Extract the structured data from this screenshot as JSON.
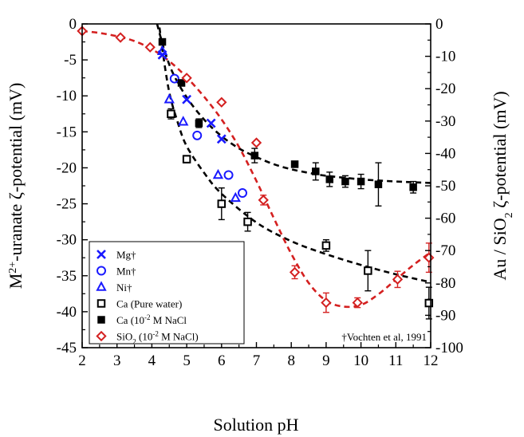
{
  "chart_data": {
    "type": "scatter",
    "xlabel": "Solution pH",
    "ylabel_left": {
      "main": "M",
      "sup": "2+",
      "rest": "-uranate ζ-potential (mV)"
    },
    "ylabel_right": {
      "main": "Au / SiO",
      "sub": "2",
      "rest": " ζ-potential (mV)"
    },
    "xlim": [
      2,
      12
    ],
    "ylim_left": [
      -45,
      0
    ],
    "ylim_right": [
      -100,
      0
    ],
    "xticks": [
      "2",
      "3",
      "4",
      "5",
      "6",
      "7",
      "8",
      "9",
      "10",
      "11",
      "12"
    ],
    "yticks_left": [
      "0",
      "-5",
      "-10",
      "-15",
      "-20",
      "-25",
      "-30",
      "-35",
      "-40",
      "-45"
    ],
    "yticks_right": [
      "0",
      "-10",
      "-20",
      "-30",
      "-40",
      "-50",
      "-60",
      "-70",
      "-80",
      "-90",
      "-100"
    ],
    "annotation": "†Vochten et al, 1991",
    "legend_position": "bottom-left",
    "colors": {
      "blue": "#1a1aff",
      "black": "#000000",
      "red": "#d42020"
    },
    "series": [
      {
        "name": "Mg†",
        "marker": "x",
        "color": "#1a1aff",
        "axis": "left",
        "points": [
          [
            4.3,
            -4.3
          ],
          [
            5.0,
            -10.5
          ],
          [
            5.7,
            -13.8
          ],
          [
            6.0,
            -16.0
          ]
        ]
      },
      {
        "name": "Mn†",
        "marker": "circle-open",
        "color": "#1a1aff",
        "axis": "left",
        "points": [
          [
            4.65,
            -7.6
          ],
          [
            5.3,
            -15.5
          ],
          [
            6.2,
            -21.0
          ],
          [
            6.6,
            -23.5
          ]
        ]
      },
      {
        "name": "Ni†",
        "marker": "triangle-open",
        "color": "#1a1aff",
        "axis": "left",
        "points": [
          [
            4.3,
            -3.8
          ],
          [
            4.5,
            -10.5
          ],
          [
            4.9,
            -13.6
          ],
          [
            5.9,
            -21.0
          ],
          [
            6.4,
            -24.2
          ]
        ]
      },
      {
        "name": "Ca (Pure water)",
        "marker": "square-open",
        "color": "#000000",
        "axis": "left",
        "points": [
          [
            4.55,
            -12.5
          ],
          [
            5.0,
            -18.8
          ],
          [
            6.0,
            -25.0
          ],
          [
            6.75,
            -27.5
          ],
          [
            9.0,
            -30.8
          ],
          [
            10.2,
            -34.3
          ],
          [
            11.95,
            -38.8
          ]
        ],
        "errors": [
          0.7,
          0.5,
          2.2,
          1.3,
          0.8,
          2.8,
          2.2
        ]
      },
      {
        "name": "Ca (10^-2 M NaCl",
        "marker": "square-filled",
        "color": "#000000",
        "axis": "left",
        "points": [
          [
            4.3,
            -2.5
          ],
          [
            4.85,
            -8.2
          ],
          [
            5.35,
            -13.8
          ],
          [
            6.95,
            -18.3
          ],
          [
            8.1,
            -19.5
          ],
          [
            8.7,
            -20.5
          ],
          [
            9.1,
            -21.6
          ],
          [
            9.55,
            -21.9
          ],
          [
            10.0,
            -21.9
          ],
          [
            10.5,
            -22.3
          ],
          [
            11.5,
            -22.7
          ]
        ],
        "errors": [
          0.3,
          0.3,
          0.6,
          1.0,
          0.4,
          1.2,
          1.0,
          0.8,
          1.0,
          3.0,
          0.8
        ]
      },
      {
        "name": "SiO2 (10^-2 M NaCl)",
        "marker": "diamond-open",
        "color": "#d42020",
        "axis": "right",
        "points": [
          [
            2.0,
            -2.2
          ],
          [
            3.1,
            -4.2
          ],
          [
            3.95,
            -7.2
          ],
          [
            5.0,
            -16.7
          ],
          [
            6.0,
            -24.2
          ],
          [
            7.0,
            -36.7
          ],
          [
            7.2,
            -54.4
          ],
          [
            8.1,
            -76.7
          ],
          [
            9.0,
            -86.1
          ],
          [
            9.9,
            -86.1
          ],
          [
            11.05,
            -78.9
          ],
          [
            11.95,
            -72.2
          ]
        ],
        "errors": [
          0,
          0,
          0,
          0,
          0,
          0,
          1.5,
          2.0,
          3.0,
          1.5,
          2.5,
          4.5
        ]
      }
    ],
    "fits": [
      {
        "name": "Ca pure water fit",
        "color": "#000000",
        "axis": "left",
        "points": [
          [
            4.22,
            -0.5
          ],
          [
            4.3,
            -3.5
          ],
          [
            4.5,
            -9.5
          ],
          [
            4.75,
            -13.8
          ],
          [
            5.0,
            -17.0
          ],
          [
            5.5,
            -20.7
          ],
          [
            6.0,
            -23.6
          ],
          [
            7.0,
            -27.6
          ],
          [
            8.0,
            -30.2
          ],
          [
            9.0,
            -32.0
          ],
          [
            10.0,
            -33.5
          ],
          [
            11.0,
            -34.8
          ],
          [
            12.0,
            -35.9
          ]
        ]
      },
      {
        "name": "Ca NaCl fit",
        "color": "#000000",
        "axis": "left",
        "points": [
          [
            4.15,
            0.0
          ],
          [
            4.35,
            -3.5
          ],
          [
            4.6,
            -6.8
          ],
          [
            5.0,
            -10.2
          ],
          [
            5.5,
            -13.3
          ],
          [
            6.0,
            -15.6
          ],
          [
            6.5,
            -17.3
          ],
          [
            7.0,
            -18.5
          ],
          [
            7.5,
            -19.5
          ],
          [
            8.0,
            -20.2
          ],
          [
            8.5,
            -20.7
          ],
          [
            9.0,
            -21.1
          ],
          [
            10.0,
            -21.6
          ],
          [
            11.0,
            -21.9
          ],
          [
            12.0,
            -22.1
          ]
        ]
      },
      {
        "name": "SiO2 fit",
        "color": "#d42020",
        "axis": "right",
        "points": [
          [
            2.0,
            -2.2
          ],
          [
            2.5,
            -2.8
          ],
          [
            3.0,
            -3.8
          ],
          [
            3.5,
            -5.3
          ],
          [
            4.0,
            -7.8
          ],
          [
            4.5,
            -11.5
          ],
          [
            5.0,
            -16.5
          ],
          [
            5.5,
            -22.5
          ],
          [
            6.0,
            -29.5
          ],
          [
            6.5,
            -38.0
          ],
          [
            7.0,
            -48.5
          ],
          [
            7.5,
            -60.0
          ],
          [
            8.0,
            -71.0
          ],
          [
            8.5,
            -80.0
          ],
          [
            9.0,
            -85.5
          ],
          [
            9.5,
            -87.3
          ],
          [
            10.0,
            -86.8
          ],
          [
            10.5,
            -83.5
          ],
          [
            11.0,
            -79.0
          ],
          [
            11.5,
            -74.5
          ],
          [
            12.0,
            -70.5
          ]
        ]
      }
    ]
  }
}
